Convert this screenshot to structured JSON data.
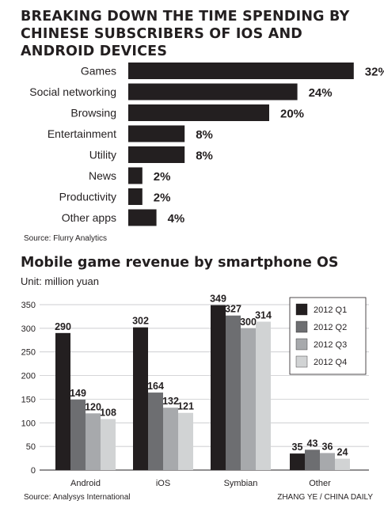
{
  "charts": {
    "top": {
      "title": "BREAKING DOWN THE TIME SPENDING BY CHINESE SUBSCRIBERS OF IOS AND ANDROID DEVICES",
      "source": "Source: Flurry Analytics"
    },
    "bottom": {
      "title": "Mobile game revenue by smartphone OS",
      "unit": "Unit: million yuan",
      "source": "Source: Analysys International"
    }
  },
  "credit": "ZHANG YE / CHINA DAILY",
  "colors": {
    "bar": "#231f20",
    "q1": "#231f20",
    "q2": "#6d6e71",
    "q3": "#a7a9ac",
    "q4": "#d1d3d4"
  },
  "chart_data": [
    {
      "type": "bar",
      "orientation": "horizontal",
      "title": "BREAKING DOWN THE TIME SPENDING BY CHINESE SUBSCRIBERS OF IOS AND ANDROID DEVICES",
      "categories": [
        "Games",
        "Social networking",
        "Browsing",
        "Entertainment",
        "Utility",
        "News",
        "Productivity",
        "Other apps"
      ],
      "values": [
        32,
        24,
        20,
        8,
        8,
        2,
        2,
        4
      ],
      "value_labels": [
        "32%",
        "24%",
        "20%",
        "8%",
        "8%",
        "2%",
        "2%",
        "4%"
      ],
      "unit": "%"
    },
    {
      "type": "bar",
      "title": "Mobile game revenue by smartphone OS",
      "ylabel": "Unit: million yuan",
      "categories": [
        "Android",
        "iOS",
        "Symbian",
        "Other"
      ],
      "series": [
        {
          "name": "2012 Q1",
          "values": [
            290,
            302,
            349,
            35
          ]
        },
        {
          "name": "2012 Q2",
          "values": [
            149,
            164,
            327,
            43
          ]
        },
        {
          "name": "2012 Q3",
          "values": [
            120,
            132,
            300,
            36
          ]
        },
        {
          "name": "2012 Q4",
          "values": [
            108,
            121,
            314,
            24
          ]
        }
      ],
      "ylim": [
        0,
        350
      ],
      "yticks": [
        0,
        50,
        100,
        150,
        200,
        250,
        300,
        350
      ],
      "grid": true,
      "legend": "top-right"
    }
  ]
}
